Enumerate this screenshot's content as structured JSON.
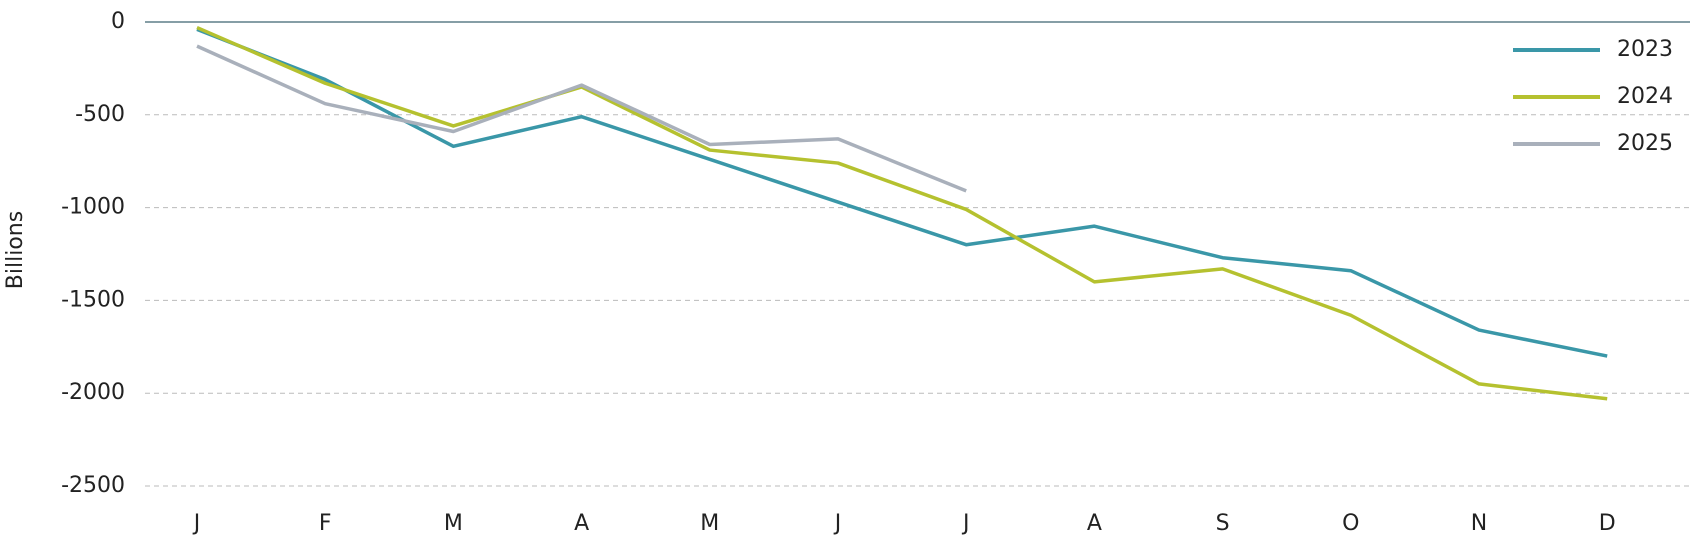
{
  "chart_data": {
    "type": "line",
    "y_label": "Billions",
    "categories": [
      "J",
      "F",
      "M",
      "A",
      "M",
      "J",
      "J",
      "A",
      "S",
      "O",
      "N",
      "D"
    ],
    "series": [
      {
        "name": "2023",
        "color": "#3a97a8",
        "values": [
          -40,
          -310,
          -670,
          -510,
          -740,
          -970,
          -1200,
          -1100,
          -1270,
          -1340,
          -1660,
          -1800
        ]
      },
      {
        "name": "2024",
        "color": "#b5c12f",
        "values": [
          -30,
          -330,
          -560,
          -350,
          -690,
          -760,
          -1010,
          -1400,
          -1330,
          -1580,
          -1950,
          -2030
        ]
      },
      {
        "name": "2025",
        "color": "#a9b0bb",
        "values": [
          -130,
          -440,
          -590,
          -340,
          -660,
          -630,
          -910,
          null,
          null,
          null,
          null,
          null
        ]
      }
    ],
    "ylim": [
      -2500,
      0
    ],
    "yticks": [
      0,
      -500,
      -1000,
      -1500,
      -2000,
      -2500
    ],
    "grid": true,
    "legend": "top-right"
  }
}
